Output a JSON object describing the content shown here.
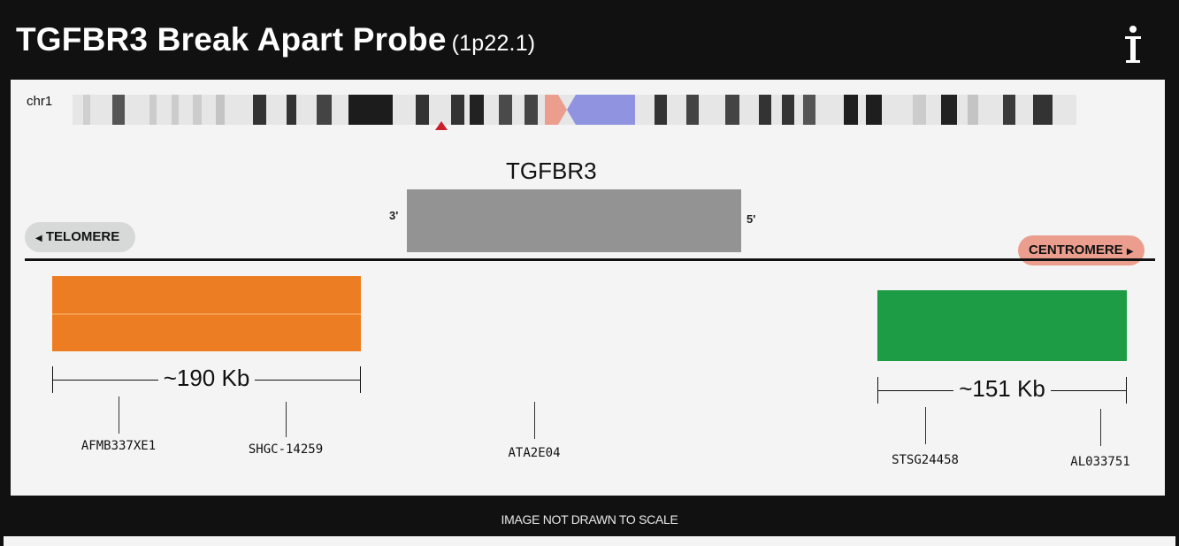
{
  "header": {
    "title": "TGFBR3 Break Apart Probe",
    "location": "(1p22.1)",
    "info_icon": "info-icon"
  },
  "chromosome": {
    "label": "chr1"
  },
  "gene": {
    "name": "TGFBR3",
    "end_3": "3'",
    "end_5": "5'"
  },
  "orientation": {
    "telomere": "TELOMERE",
    "centromere": "CENTROMERE"
  },
  "probes": {
    "orange": {
      "color": "#ec7d22",
      "size": "~190 Kb"
    },
    "green": {
      "color": "#1e9b45",
      "size": "~151 Kb"
    }
  },
  "markers": [
    {
      "name": "AFMB337XE1"
    },
    {
      "name": "SHGC-14259"
    },
    {
      "name": "ATA2E04"
    },
    {
      "name": "STSG24458"
    },
    {
      "name": "AL033751"
    }
  ],
  "footer": {
    "note": "IMAGE NOT DRAWN TO SCALE"
  },
  "colors": {
    "gene_box": "#939393",
    "centromere": "#ec9e8e",
    "centromere_region": "#8f93e0"
  }
}
